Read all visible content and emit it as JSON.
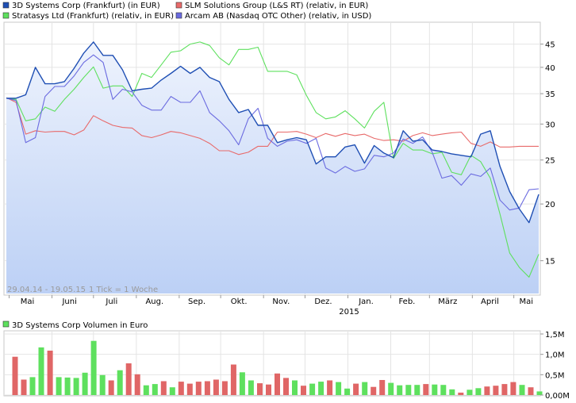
{
  "chart_data": [
    {
      "type": "line",
      "legend": [
        {
          "label": "3D Systems Corp (Frankfurt) (in EUR)",
          "color": "#1f4fb4"
        },
        {
          "label": "SLM Solutions Group (L&S RT) (relativ, in EUR)",
          "color": "#e86a6a"
        },
        {
          "label": "Stratasys Ltd (Frankfurt) (relativ, in EUR)",
          "color": "#5ee05e"
        },
        {
          "label": "Arcam AB (Nasdaq OTC Other) (relativ, in USD)",
          "color": "#6b6be0"
        }
      ],
      "date_range_label": "29.04.14 - 19.05.15",
      "tick_info": "1 Tick = 1 Woche",
      "x_labels": [
        "Mai",
        "Juni",
        "Juli",
        "Aug.",
        "Sep.",
        "Okt.",
        "Nov.",
        "Dez.",
        "Jan.",
        "Feb.",
        "März",
        "April",
        "Mai"
      ],
      "x_year_label": "2015",
      "y_scale": "log",
      "y_ticks": [
        15,
        20,
        25,
        30,
        35,
        40,
        45
      ],
      "ylim": [
        12.7,
        48.5
      ],
      "x": [
        "2014-04-29",
        "2014-05-06",
        "2014-05-13",
        "2014-05-20",
        "2014-05-27",
        "2014-06-03",
        "2014-06-10",
        "2014-06-17",
        "2014-06-24",
        "2014-07-01",
        "2014-07-08",
        "2014-07-15",
        "2014-07-22",
        "2014-07-29",
        "2014-08-05",
        "2014-08-12",
        "2014-08-19",
        "2014-08-26",
        "2014-09-02",
        "2014-09-09",
        "2014-09-16",
        "2014-09-23",
        "2014-09-30",
        "2014-10-07",
        "2014-10-14",
        "2014-10-21",
        "2014-10-28",
        "2014-11-04",
        "2014-11-11",
        "2014-11-18",
        "2014-11-25",
        "2014-12-02",
        "2014-12-09",
        "2014-12-16",
        "2014-12-23",
        "2014-12-30",
        "2015-01-06",
        "2015-01-13",
        "2015-01-20",
        "2015-01-27",
        "2015-02-03",
        "2015-02-10",
        "2015-02-17",
        "2015-02-24",
        "2015-03-03",
        "2015-03-10",
        "2015-03-17",
        "2015-03-24",
        "2015-03-31",
        "2015-04-07",
        "2015-04-14",
        "2015-04-21",
        "2015-04-28",
        "2015-05-05",
        "2015-05-12",
        "2015-05-19"
      ],
      "series": [
        {
          "name": "3D Systems Corp (Frankfurt) (in EUR)",
          "color": "#1f4fb4",
          "values": [
            34.2,
            34.2,
            34.8,
            40.0,
            36.8,
            36.8,
            37.2,
            39.8,
            43.0,
            45.5,
            42.5,
            42.5,
            39.5,
            35.5,
            35.8,
            36.0,
            37.5,
            38.8,
            40.2,
            38.8,
            40.0,
            38.0,
            37.2,
            34.0,
            31.8,
            32.3,
            29.8,
            29.8,
            27.3,
            27.7,
            28.0,
            27.7,
            24.5,
            25.4,
            25.4,
            26.7,
            27.0,
            24.6,
            26.9,
            25.9,
            25.3,
            29.0,
            27.5,
            27.7,
            26.3,
            26.1,
            25.8,
            25.6,
            25.4,
            28.5,
            29.0,
            24.2,
            21.3,
            19.5,
            18.2,
            21.0
          ]
        },
        {
          "name": "SLM Solutions Group (L&S RT) (relativ, in EUR)",
          "color": "#e86a6a",
          "values": [
            34.3,
            33.5,
            28.5,
            29.0,
            28.8,
            28.9,
            28.9,
            28.4,
            29.1,
            31.3,
            30.5,
            29.8,
            29.5,
            29.4,
            28.3,
            28.0,
            28.4,
            28.9,
            28.7,
            28.3,
            27.9,
            27.2,
            26.2,
            26.2,
            25.7,
            26.0,
            26.8,
            26.8,
            28.8,
            28.8,
            28.9,
            28.5,
            28.0,
            28.6,
            28.2,
            28.6,
            28.3,
            28.5,
            27.9,
            27.6,
            27.7,
            27.5,
            28.3,
            28.7,
            28.3,
            28.5,
            28.7,
            28.8,
            27.2,
            26.8,
            27.4,
            26.7,
            26.7,
            26.8,
            26.8,
            26.8
          ]
        },
        {
          "name": "Stratasys Ltd (Frankfurt) (relativ, in EUR)",
          "color": "#5ee05e",
          "values": [
            34.2,
            34.0,
            30.5,
            30.8,
            32.7,
            32.0,
            34.0,
            35.8,
            38.0,
            40.1,
            36.0,
            36.4,
            36.4,
            34.5,
            38.8,
            38.0,
            40.5,
            43.2,
            43.5,
            45.0,
            45.5,
            44.7,
            42.0,
            40.5,
            43.8,
            43.8,
            44.3,
            39.2,
            39.2,
            39.2,
            38.5,
            34.7,
            31.8,
            30.8,
            31.1,
            32.1,
            30.8,
            29.4,
            32.0,
            33.5,
            25.2,
            27.2,
            26.3,
            26.3,
            25.8,
            26.0,
            23.5,
            23.2,
            25.6,
            24.8,
            22.8,
            19.0,
            15.6,
            14.5,
            13.8,
            15.5
          ]
        },
        {
          "name": "Arcam AB (Nasdaq OTC Other) (relativ, in USD)",
          "color": "#6b6be0",
          "values": [
            34.2,
            33.8,
            27.3,
            28.0,
            34.5,
            36.3,
            36.3,
            38.3,
            41.0,
            42.6,
            41.0,
            34.0,
            35.8,
            35.3,
            33.0,
            32.2,
            32.2,
            34.5,
            33.5,
            33.5,
            35.5,
            31.8,
            30.5,
            29.0,
            27.0,
            30.8,
            32.5,
            27.9,
            26.8,
            27.5,
            27.7,
            27.2,
            27.9,
            24.0,
            23.4,
            24.2,
            23.6,
            23.9,
            25.6,
            25.4,
            25.9,
            27.8,
            27.2,
            28.1,
            26.0,
            22.8,
            23.1,
            22.0,
            23.3,
            23.0,
            24.0,
            20.4,
            19.4,
            19.6,
            21.5,
            21.6
          ]
        }
      ]
    },
    {
      "type": "bar",
      "title": "3D Systems Corp Volumen in Euro",
      "title_color": "#5ee05e",
      "y_ticks": [
        "0,00M",
        "0,5M",
        "1,0M",
        "1,5M"
      ],
      "y_tick_values": [
        0,
        0.5,
        1.0,
        1.5
      ],
      "ylim": [
        0,
        1.5
      ],
      "up_color": "#5ee05e",
      "down_color": "#e06666",
      "values": [
        0.94,
        0.38,
        0.44,
        1.17,
        1.09,
        0.44,
        0.43,
        0.42,
        0.55,
        1.33,
        0.49,
        0.36,
        0.61,
        0.78,
        0.51,
        0.24,
        0.27,
        0.34,
        0.19,
        0.33,
        0.28,
        0.33,
        0.34,
        0.38,
        0.34,
        0.75,
        0.56,
        0.36,
        0.29,
        0.26,
        0.53,
        0.42,
        0.36,
        0.23,
        0.28,
        0.33,
        0.36,
        0.32,
        0.16,
        0.28,
        0.32,
        0.2,
        0.37,
        0.3,
        0.24,
        0.25,
        0.25,
        0.27,
        0.26,
        0.25,
        0.14,
        0.06,
        0.13,
        0.17,
        0.21,
        0.23,
        0.27,
        0.32,
        0.25,
        0.19,
        0.09
      ],
      "up": [
        false,
        false,
        true,
        true,
        false,
        true,
        true,
        true,
        true,
        true,
        true,
        false,
        true,
        false,
        false,
        true,
        true,
        false,
        true,
        false,
        false,
        false,
        false,
        false,
        false,
        false,
        true,
        true,
        false,
        false,
        false,
        false,
        true,
        false,
        true,
        true,
        false,
        true,
        true,
        false,
        true,
        false,
        false,
        true,
        true,
        true,
        true,
        false,
        true,
        true,
        true,
        false,
        true,
        true,
        false,
        false,
        false,
        false,
        true,
        false,
        true
      ]
    }
  ]
}
